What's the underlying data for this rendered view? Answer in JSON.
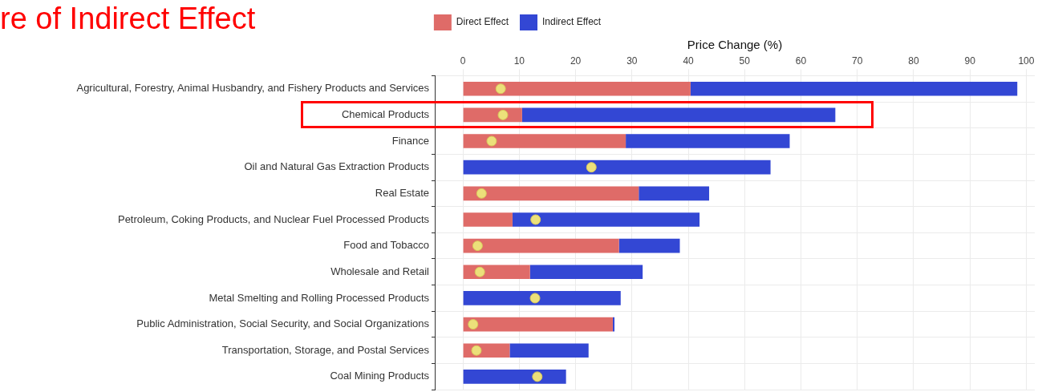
{
  "chart_data": {
    "type": "bar",
    "orientation": "horizontal",
    "stacked": true,
    "title": "re of Indirect Effect",
    "xlabel": "Price Change (%)",
    "categories": [
      "Agricultural, Forestry, Animal Husbandry, and Fishery Products and Services",
      "Chemical Products",
      "Finance",
      "Oil and Natural Gas Extraction Products",
      "Real Estate",
      "Petroleum, Coking Products, and Nuclear Fuel Processed Products",
      "Food and Tobacco",
      "Wholesale and Retail",
      "Metal Smelting and Rolling Processed Products",
      "Public Administration, Social Security, and Social Organizations",
      "Transportation, Storage, and Postal Services",
      "Coal Mining Products"
    ],
    "series": [
      {
        "name": "Direct Effect",
        "color": "#df6b68",
        "values": [
          40.4,
          10.5,
          28.9,
          0,
          31.2,
          8.8,
          27.7,
          11.9,
          0,
          26.6,
          8.3,
          0
        ]
      },
      {
        "name": "Indirect Effect",
        "color": "#3347d4",
        "values": [
          58.0,
          55.6,
          29.1,
          54.6,
          12.5,
          33.2,
          10.8,
          20.0,
          28.0,
          0.3,
          14.0,
          18.3
        ]
      },
      {
        "type": "scatter",
        "color": "#ece07a",
        "values": [
          6.7,
          7.1,
          5.1,
          22.8,
          3.3,
          12.9,
          2.6,
          3.0,
          12.8,
          1.8,
          2.4,
          13.2
        ]
      }
    ],
    "xlim": [
      -5,
      101.5
    ],
    "xticks": [
      0,
      10,
      20,
      30,
      40,
      50,
      60,
      70,
      80,
      90,
      100
    ],
    "grid": true,
    "legend": "top",
    "marker": "circle"
  }
}
